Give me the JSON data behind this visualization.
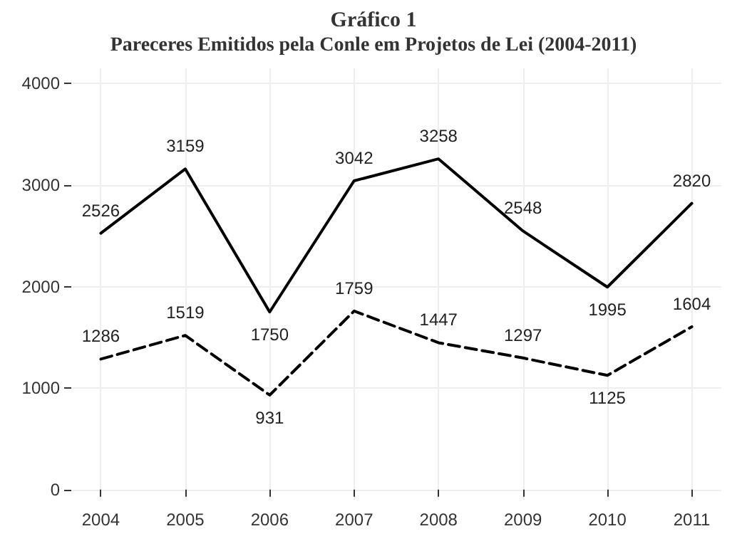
{
  "chart_data": {
    "type": "line",
    "title": "Gráfico 1",
    "subtitle": "Pareceres Emitidos pela Conle em Projetos de Lei (2004-2011)",
    "x": [
      2004,
      2005,
      2006,
      2007,
      2008,
      2009,
      2010,
      2011
    ],
    "xlim": [
      2003.65,
      2011.35
    ],
    "xticks": [
      2004,
      2005,
      2006,
      2007,
      2008,
      2009,
      2010,
      2011
    ],
    "ylim": [
      -100,
      4150
    ],
    "yticks": [
      0,
      1000,
      2000,
      3000,
      4000
    ],
    "series": [
      {
        "color": "#000000",
        "line_style": "solid",
        "values": [
          2526,
          3159,
          1750,
          3042,
          3258,
          2548,
          1995,
          2820
        ]
      },
      {
        "color": "#000000",
        "line_style": "dashed",
        "values": [
          1286,
          1519,
          931,
          1759,
          1447,
          1297,
          1125,
          1604
        ]
      }
    ],
    "data_labels": true,
    "grid": true,
    "marker": "none"
  }
}
